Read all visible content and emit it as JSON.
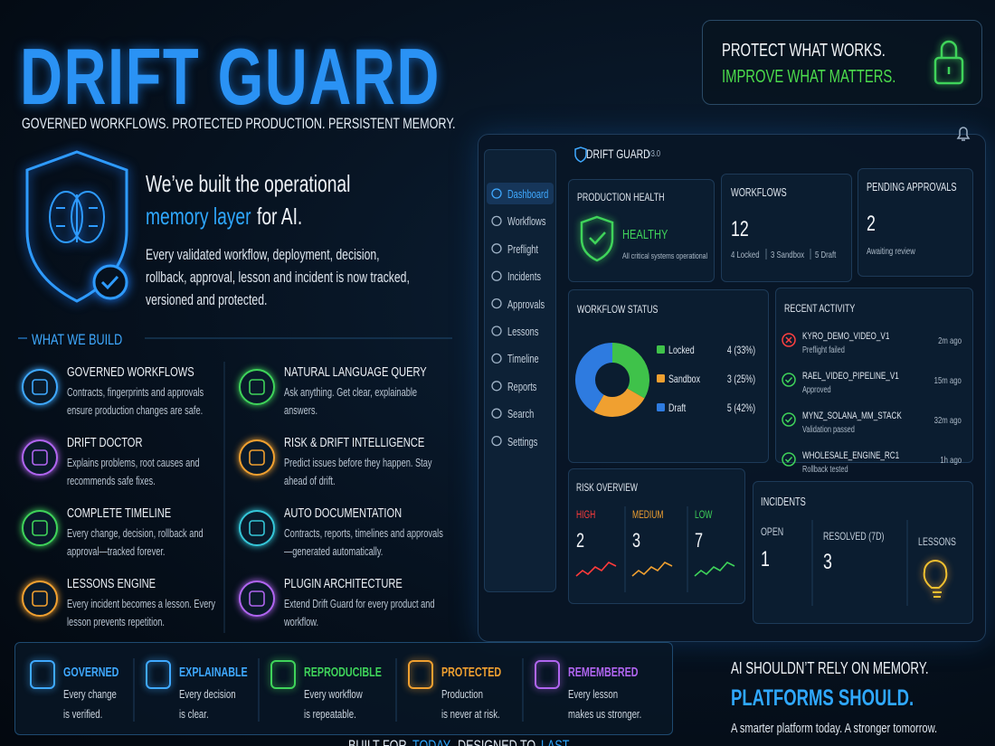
{
  "header": {
    "title": "DRIFT GUARD",
    "tagline": "GOVERNED WORKFLOWS. PROTECTED PRODUCTION. PERSISTENT MEMORY."
  },
  "badge": {
    "line1": "PROTECT WHAT WORKS.",
    "line2": "IMPROVE WHAT MATTERS."
  },
  "intro": {
    "heading_line1": "We’ve built the operational",
    "heading_highlight": "memory layer",
    "heading_end": "for AI.",
    "body": "Every validated workflow, deployment, decision, rollback, approval, lesson and incident is now tracked, versioned and protected."
  },
  "section_title": "WHAT WE BUILD",
  "features": [
    {
      "title": "GOVERNED WORKFLOWS",
      "desc": "Contracts, fingerprints and approvals ensure production changes are safe."
    },
    {
      "title": "NATURAL LANGUAGE QUERY",
      "desc": "Ask anything. Get clear, explainable answers."
    },
    {
      "title": "DRIFT DOCTOR",
      "desc": "Explains problems, root causes and recommends safe fixes."
    },
    {
      "title": "RISK & DRIFT INTELLIGENCE",
      "desc": "Predict issues before they happen. Stay ahead of drift."
    },
    {
      "title": "COMPLETE TIMELINE",
      "desc": "Every change, decision, rollback and approval—tracked forever."
    },
    {
      "title": "AUTO DOCUMENTATION",
      "desc": "Contracts, reports, timelines and approvals—generated automatically."
    },
    {
      "title": "LESSONS ENGINE",
      "desc": "Every incident becomes a lesson. Every lesson prevents repetition."
    },
    {
      "title": "PLUGIN ARCHITECTURE",
      "desc": "Extend Drift Guard for every product and workflow."
    }
  ],
  "pillars": [
    {
      "title": "GOVERNED",
      "line1": "Every change",
      "line2": "is verified."
    },
    {
      "title": "EXPLAINABLE",
      "line1": "Every decision",
      "line2": "is clear."
    },
    {
      "title": "REPRODUCIBLE",
      "line1": "Every workflow",
      "line2": "is repeatable."
    },
    {
      "title": "PROTECTED",
      "line1": "Production",
      "line2": "is never at risk."
    },
    {
      "title": "REMEMBERED",
      "line1": "Every lesson",
      "line2": "makes us stronger."
    }
  ],
  "closing": {
    "line1": "AI SHOULDN’T RELY ON MEMORY.",
    "line2": "PLATFORMS SHOULD.",
    "line3": "A smarter platform today. A stronger tomorrow."
  },
  "footer": {
    "part1": "BUILT FOR",
    "part2": "TODAY.",
    "part3": "DESIGNED TO",
    "part4": "LAST."
  },
  "dashboard": {
    "brand": "DRIFT GUARD",
    "version": "v3.0",
    "nav": [
      "Dashboard",
      "Workflows",
      "Preflight",
      "Incidents",
      "Approvals",
      "Lessons",
      "Timeline",
      "Reports",
      "Search",
      "Settings"
    ],
    "health": {
      "title": "PRODUCTION HEALTH",
      "status": "HEALTHY",
      "note": "All critical systems operational"
    },
    "workflows": {
      "title": "WORKFLOWS",
      "count": "12",
      "breakdown": [
        "4 Locked",
        "3 Sandbox",
        "5 Draft"
      ]
    },
    "approvals": {
      "title": "PENDING APPROVALS",
      "count": "2",
      "note": "Awaiting review"
    },
    "workflow_status": {
      "title": "WORKFLOW STATUS",
      "type": "pie",
      "categories": [
        "Locked",
        "Sandbox",
        "Draft"
      ],
      "values": [
        4,
        3,
        5
      ],
      "value_labels": [
        "4 (33%)",
        "3 (25%)",
        "5 (42%)"
      ],
      "colors": [
        "#3fc24a",
        "#f0a030",
        "#2e7be0"
      ]
    },
    "activity": {
      "title": "RECENT ACTIVITY",
      "items": [
        {
          "name": "KYRO_DEMO_VIDEO_V1",
          "status": "Preflight failed",
          "time": "2m ago"
        },
        {
          "name": "RAEL_VIDEO_PIPELINE_V1",
          "status": "Approved",
          "time": "15m ago"
        },
        {
          "name": "MYNZ_SOLANA_MM_STACK",
          "status": "Validation passed",
          "time": "32m ago"
        },
        {
          "name": "WHOLESALE_ENGINE_RC1",
          "status": "Rollback tested",
          "time": "1h ago"
        }
      ]
    },
    "risk": {
      "title": "RISK OVERVIEW",
      "items": [
        {
          "label": "HIGH",
          "value": "2",
          "color": "#ff3b3b"
        },
        {
          "label": "MEDIUM",
          "value": "3",
          "color": "#f0a030"
        },
        {
          "label": "LOW",
          "value": "7",
          "color": "#3fd35a"
        }
      ]
    },
    "incidents": {
      "title": "INCIDENTS",
      "open_label": "OPEN",
      "open": "1",
      "resolved_label": "RESOLVED (7D)",
      "resolved": "3",
      "lessons_label": "LESSONS"
    }
  }
}
